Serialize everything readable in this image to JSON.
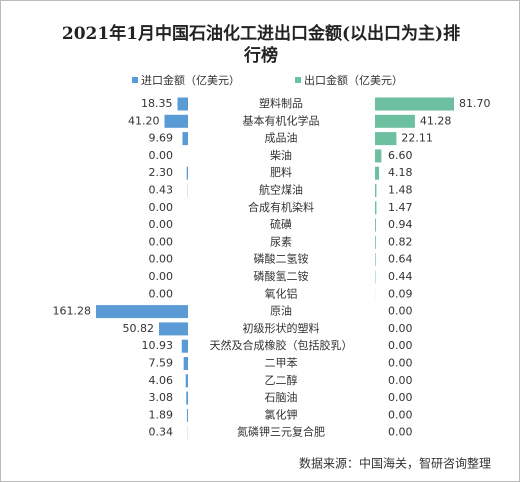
{
  "chart_data": {
    "type": "butterfly-bar",
    "title": "2021年1月中国石油化工进出口金额(以出口为主)排行榜",
    "source": "数据来源：中国海关，智研咨询整理",
    "categories": [
      "塑料制品",
      "基本有机化学品",
      "成品油",
      "柴油",
      "肥料",
      "航空煤油",
      "合成有机染料",
      "硫磺",
      "尿素",
      "磷酸二氢铵",
      "磷酸氢二铵",
      "氧化铝",
      "原油",
      "初级形状的塑料",
      "天然及合成橡胶（包括胶乳）",
      "二甲苯",
      "乙二醇",
      "石脑油",
      "氯化钾",
      "氮磷钾三元复合肥"
    ],
    "series": [
      {
        "name": "进口金额（亿美元）",
        "color": "#5b9bd5",
        "values": [
          18.35,
          41.2,
          9.69,
          0,
          2.3,
          0.43,
          0,
          0,
          0,
          0,
          0,
          0,
          161.28,
          50.82,
          10.93,
          7.59,
          4.06,
          3.08,
          1.89,
          0.34
        ],
        "value_labels": [
          "18.35",
          "41.20",
          "9.69",
          "0.00",
          "2.30",
          "0.43",
          "0.00",
          "0.00",
          "0.00",
          "0.00",
          "0.00",
          "0.00",
          "161.28",
          "50.82",
          "10.93",
          "7.59",
          "4.06",
          "3.08",
          "1.89",
          "0.34"
        ]
      },
      {
        "name": "出口金额（亿美元）",
        "color": "#6cbf9f",
        "values": [
          81.7,
          41.28,
          22.11,
          6.6,
          4.18,
          1.48,
          1.47,
          0.94,
          0.82,
          0.64,
          0.44,
          0.09,
          0,
          0,
          0,
          0,
          0,
          0,
          0,
          0
        ],
        "value_labels": [
          "81.70",
          "41.28",
          "22.11",
          "6.60",
          "4.18",
          "1.48",
          "1.47",
          "0.94",
          "0.82",
          "0.64",
          "0.44",
          "0.09",
          "0.00",
          "0.00",
          "0.00",
          "0.00",
          "0.00",
          "0.00",
          "0.00",
          "0.00"
        ]
      }
    ]
  }
}
